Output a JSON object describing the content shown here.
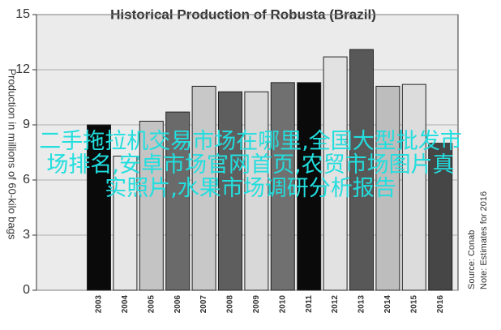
{
  "chart_data": {
    "type": "bar",
    "title": "Historical Production of Robusta (Brazil)",
    "y_label": "Production in millions of 60-kilo bags",
    "notes": [
      "Source: Conab",
      "Note: Estimates for 2016"
    ],
    "categories": [
      "2003",
      "2004",
      "2005",
      "2006",
      "2007",
      "2008",
      "2009",
      "2010",
      "2011",
      "2012",
      "2013",
      "2014",
      "2015",
      "2016"
    ],
    "values": [
      9.0,
      7.3,
      9.2,
      9.7,
      11.1,
      10.8,
      10.8,
      11.3,
      11.3,
      12.7,
      13.1,
      11.1,
      11.2,
      8.0
    ],
    "colors": [
      "#0a0a0a",
      "#e6e6e6",
      "#c4c4c4",
      "#6a6a6a",
      "#c8c8c8",
      "#5e5e5e",
      "#d8d8d8",
      "#707070",
      "#0a0a0a",
      "#e2e2e2",
      "#585858",
      "#bdbdbd",
      "#dcdcdc",
      "#464646"
    ],
    "ylim": [
      0,
      15
    ],
    "yticks": [
      0,
      3,
      6,
      9,
      12,
      15
    ],
    "grid": true
  },
  "overlay_text": [
    "二手拖拉机交易市场在哪里,全国大型批发市",
    "场排名,安卓市场官网首页,农贸市场图片真",
    "实照片,水果市场调研分析报告"
  ]
}
